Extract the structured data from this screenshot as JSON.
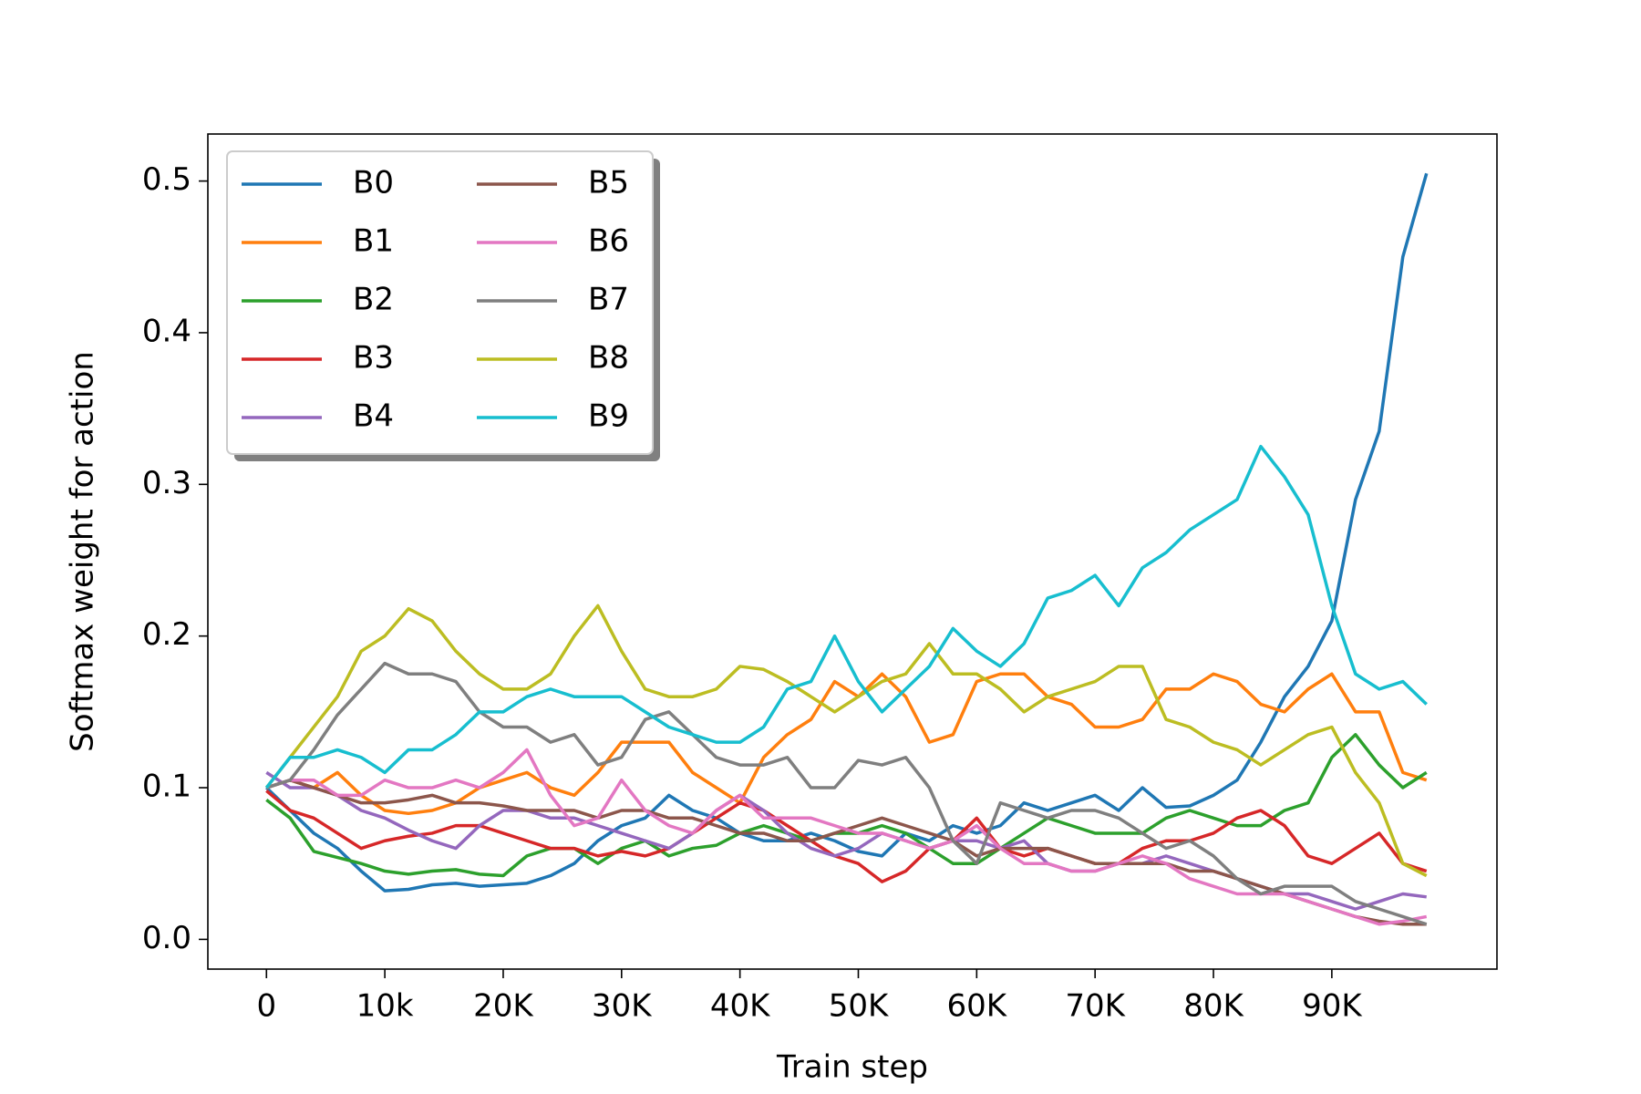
{
  "chart_data": {
    "type": "line",
    "x_label": "Train step",
    "y_label": "Softmax weight for action",
    "x": [
      0,
      2000,
      4000,
      6000,
      8000,
      10000,
      12000,
      14000,
      16000,
      18000,
      20000,
      22000,
      24000,
      26000,
      28000,
      30000,
      32000,
      34000,
      36000,
      38000,
      40000,
      42000,
      44000,
      46000,
      48000,
      50000,
      52000,
      54000,
      56000,
      58000,
      60000,
      62000,
      64000,
      66000,
      68000,
      70000,
      72000,
      74000,
      76000,
      78000,
      80000,
      82000,
      84000,
      86000,
      88000,
      90000,
      92000,
      94000,
      96000,
      98000
    ],
    "xlim": [
      -4950,
      103950
    ],
    "xticks": [
      0,
      {
        "value": 10000,
        "label": "10k"
      },
      {
        "value": 20000,
        "label": "20K"
      },
      {
        "value": 30000,
        "label": "30K"
      },
      {
        "value": 40000,
        "label": "40K"
      },
      {
        "value": 50000,
        "label": "50K"
      },
      {
        "value": 60000,
        "label": "60K"
      },
      {
        "value": 70000,
        "label": "70K"
      },
      {
        "value": 80000,
        "label": "80K"
      },
      {
        "value": 90000,
        "label": "90K"
      }
    ],
    "ylim": [
      -0.0196,
      0.531
    ],
    "yticks": [
      {
        "value": 0,
        "label": "0.0"
      },
      0.1,
      0.2,
      0.3,
      0.4,
      0.5
    ],
    "legend_loc": "upper left",
    "legend_ncol": 2,
    "series": [
      {
        "name": "B0",
        "color": "#1f77b4",
        "values": [
          0.1,
          0.085,
          0.07,
          0.06,
          0.045,
          0.032,
          0.033,
          0.036,
          0.037,
          0.035,
          0.036,
          0.037,
          0.042,
          0.05,
          0.065,
          0.075,
          0.08,
          0.095,
          0.085,
          0.08,
          0.07,
          0.065,
          0.065,
          0.07,
          0.065,
          0.058,
          0.055,
          0.07,
          0.065,
          0.075,
          0.07,
          0.075,
          0.09,
          0.085,
          0.09,
          0.095,
          0.085,
          0.1,
          0.087,
          0.088,
          0.095,
          0.105,
          0.13,
          0.16,
          0.18,
          0.21,
          0.29,
          0.335,
          0.45,
          0.505
        ]
      },
      {
        "name": "B1",
        "color": "#ff7f0e",
        "values": [
          0.1,
          0.105,
          0.1,
          0.11,
          0.095,
          0.085,
          0.083,
          0.085,
          0.09,
          0.1,
          0.105,
          0.11,
          0.1,
          0.095,
          0.11,
          0.13,
          0.13,
          0.13,
          0.11,
          0.1,
          0.09,
          0.12,
          0.135,
          0.145,
          0.17,
          0.16,
          0.175,
          0.16,
          0.13,
          0.135,
          0.17,
          0.175,
          0.175,
          0.16,
          0.155,
          0.14,
          0.14,
          0.145,
          0.165,
          0.165,
          0.175,
          0.17,
          0.155,
          0.15,
          0.165,
          0.175,
          0.15,
          0.15,
          0.11,
          0.105
        ]
      },
      {
        "name": "B2",
        "color": "#2ca02c",
        "values": [
          0.092,
          0.08,
          0.058,
          0.054,
          0.05,
          0.045,
          0.043,
          0.045,
          0.046,
          0.043,
          0.042,
          0.055,
          0.06,
          0.06,
          0.05,
          0.06,
          0.065,
          0.055,
          0.06,
          0.062,
          0.07,
          0.075,
          0.07,
          0.065,
          0.07,
          0.07,
          0.075,
          0.07,
          0.06,
          0.05,
          0.05,
          0.06,
          0.07,
          0.08,
          0.075,
          0.07,
          0.07,
          0.07,
          0.08,
          0.085,
          0.08,
          0.075,
          0.075,
          0.085,
          0.09,
          0.12,
          0.135,
          0.115,
          0.1,
          0.11
        ]
      },
      {
        "name": "B3",
        "color": "#d62728",
        "values": [
          0.098,
          0.085,
          0.08,
          0.07,
          0.06,
          0.065,
          0.068,
          0.07,
          0.075,
          0.075,
          0.07,
          0.065,
          0.06,
          0.06,
          0.055,
          0.058,
          0.055,
          0.06,
          0.07,
          0.08,
          0.09,
          0.085,
          0.075,
          0.065,
          0.055,
          0.05,
          0.038,
          0.045,
          0.06,
          0.065,
          0.08,
          0.06,
          0.055,
          0.06,
          0.055,
          0.05,
          0.05,
          0.06,
          0.065,
          0.065,
          0.07,
          0.08,
          0.085,
          0.075,
          0.055,
          0.05,
          0.06,
          0.07,
          0.05,
          0.045
        ]
      },
      {
        "name": "B4",
        "color": "#9467bd",
        "values": [
          0.11,
          0.1,
          0.1,
          0.095,
          0.085,
          0.08,
          0.072,
          0.065,
          0.06,
          0.075,
          0.085,
          0.085,
          0.08,
          0.08,
          0.075,
          0.07,
          0.065,
          0.06,
          0.07,
          0.085,
          0.095,
          0.085,
          0.07,
          0.06,
          0.055,
          0.06,
          0.07,
          0.065,
          0.06,
          0.065,
          0.065,
          0.06,
          0.065,
          0.05,
          0.045,
          0.045,
          0.05,
          0.05,
          0.055,
          0.05,
          0.045,
          0.04,
          0.035,
          0.03,
          0.03,
          0.025,
          0.02,
          0.025,
          0.03,
          0.028
        ]
      },
      {
        "name": "B5",
        "color": "#8c564b",
        "values": [
          0.1,
          0.105,
          0.1,
          0.095,
          0.09,
          0.09,
          0.092,
          0.095,
          0.09,
          0.09,
          0.088,
          0.085,
          0.085,
          0.085,
          0.08,
          0.085,
          0.085,
          0.08,
          0.08,
          0.075,
          0.07,
          0.07,
          0.065,
          0.065,
          0.07,
          0.075,
          0.08,
          0.075,
          0.07,
          0.065,
          0.055,
          0.06,
          0.06,
          0.06,
          0.055,
          0.05,
          0.05,
          0.05,
          0.05,
          0.045,
          0.045,
          0.04,
          0.035,
          0.03,
          0.025,
          0.02,
          0.015,
          0.012,
          0.01,
          0.01
        ]
      },
      {
        "name": "B6",
        "color": "#e377c2",
        "values": [
          0.1,
          0.105,
          0.105,
          0.095,
          0.095,
          0.105,
          0.1,
          0.1,
          0.105,
          0.1,
          0.11,
          0.125,
          0.095,
          0.075,
          0.08,
          0.105,
          0.085,
          0.075,
          0.07,
          0.085,
          0.095,
          0.08,
          0.08,
          0.08,
          0.075,
          0.07,
          0.07,
          0.065,
          0.06,
          0.065,
          0.075,
          0.06,
          0.05,
          0.05,
          0.045,
          0.045,
          0.05,
          0.055,
          0.05,
          0.04,
          0.035,
          0.03,
          0.03,
          0.03,
          0.025,
          0.02,
          0.015,
          0.01,
          0.012,
          0.015
        ]
      },
      {
        "name": "B7",
        "color": "#7f7f7f",
        "values": [
          0.1,
          0.105,
          0.125,
          0.148,
          0.165,
          0.182,
          0.175,
          0.175,
          0.17,
          0.15,
          0.14,
          0.14,
          0.13,
          0.135,
          0.115,
          0.12,
          0.145,
          0.15,
          0.135,
          0.12,
          0.115,
          0.115,
          0.12,
          0.1,
          0.1,
          0.118,
          0.115,
          0.12,
          0.1,
          0.065,
          0.05,
          0.09,
          0.085,
          0.08,
          0.085,
          0.085,
          0.08,
          0.07,
          0.06,
          0.065,
          0.055,
          0.04,
          0.03,
          0.035,
          0.035,
          0.035,
          0.025,
          0.02,
          0.015,
          0.01
        ]
      },
      {
        "name": "B8",
        "color": "#bcbd22",
        "values": [
          0.1,
          0.12,
          0.14,
          0.16,
          0.19,
          0.2,
          0.218,
          0.21,
          0.19,
          0.175,
          0.165,
          0.165,
          0.175,
          0.2,
          0.22,
          0.19,
          0.165,
          0.16,
          0.16,
          0.165,
          0.18,
          0.178,
          0.17,
          0.16,
          0.15,
          0.16,
          0.17,
          0.175,
          0.195,
          0.175,
          0.175,
          0.165,
          0.15,
          0.16,
          0.165,
          0.17,
          0.18,
          0.18,
          0.145,
          0.14,
          0.13,
          0.125,
          0.115,
          0.125,
          0.135,
          0.14,
          0.11,
          0.09,
          0.05,
          0.042
        ]
      },
      {
        "name": "B9",
        "color": "#17becf",
        "values": [
          0.1,
          0.12,
          0.12,
          0.125,
          0.12,
          0.11,
          0.125,
          0.125,
          0.135,
          0.15,
          0.15,
          0.16,
          0.165,
          0.16,
          0.16,
          0.16,
          0.15,
          0.14,
          0.135,
          0.13,
          0.13,
          0.14,
          0.165,
          0.17,
          0.2,
          0.17,
          0.15,
          0.165,
          0.18,
          0.205,
          0.19,
          0.18,
          0.195,
          0.225,
          0.23,
          0.24,
          0.22,
          0.245,
          0.255,
          0.27,
          0.28,
          0.29,
          0.325,
          0.305,
          0.28,
          0.22,
          0.175,
          0.165,
          0.17,
          0.155
        ]
      }
    ]
  }
}
